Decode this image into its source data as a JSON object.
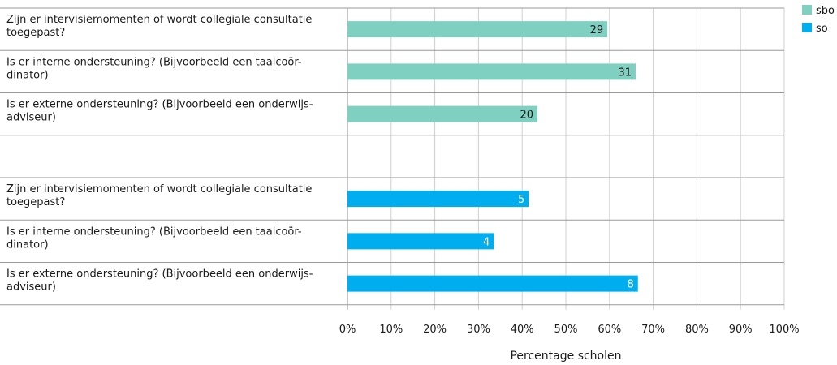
{
  "chart_data": {
    "type": "bar",
    "orientation": "horizontal",
    "xlabel": "Percentage scholen",
    "xlim": [
      0,
      100
    ],
    "x_ticks": [
      "0%",
      "10%",
      "20%",
      "30%",
      "40%",
      "50%",
      "60%",
      "70%",
      "80%",
      "90%",
      "100%"
    ],
    "grid": true,
    "legend_position": "top-right",
    "series": [
      {
        "name": "sbo",
        "color": "#7fd0c0",
        "label_color": "#1a1a1a",
        "categories": [
          "Zijn er intervisiemomenten of wordt collegiale consultatie toegepast?",
          "Is er interne ondersteuning? (Bijvoorbeeld een taalcoör-dinator)",
          "Is er externe ondersteuning? (Bijvoorbeeld een onderwijs-adviseur)"
        ],
        "category_lines": [
          [
            "Zijn er intervisiemomenten of wordt collegiale consultatie",
            "toegepast?"
          ],
          [
            "Is er interne ondersteuning? (Bijvoorbeeld een taalcoör-",
            "dinator)"
          ],
          [
            "Is er externe ondersteuning? (Bijvoorbeeld een onderwijs-",
            "adviseur)"
          ]
        ],
        "values": [
          59.5,
          66,
          43.5
        ],
        "data_labels": [
          "29",
          "31",
          "20"
        ]
      },
      {
        "name": "so",
        "color": "#00aeef",
        "label_color": "#ffffff",
        "categories": [
          "Zijn er intervisiemomenten of wordt collegiale consultatie toegepast?",
          "Is er interne ondersteuning? (Bijvoorbeeld een taalcoör-dinator)",
          "Is er externe ondersteuning? (Bijvoorbeeld een onderwijs-adviseur)"
        ],
        "category_lines": [
          [
            "Zijn er intervisiemomenten of wordt collegiale consultatie",
            "toegepast?"
          ],
          [
            "Is er interne ondersteuning? (Bijvoorbeeld een taalcoör-",
            "dinator)"
          ],
          [
            "Is er externe ondersteuning? (Bijvoorbeeld een onderwijs-",
            "adviseur)"
          ]
        ],
        "values": [
          41.5,
          33.5,
          66.5
        ],
        "data_labels": [
          "5",
          "4",
          "8"
        ]
      }
    ]
  }
}
